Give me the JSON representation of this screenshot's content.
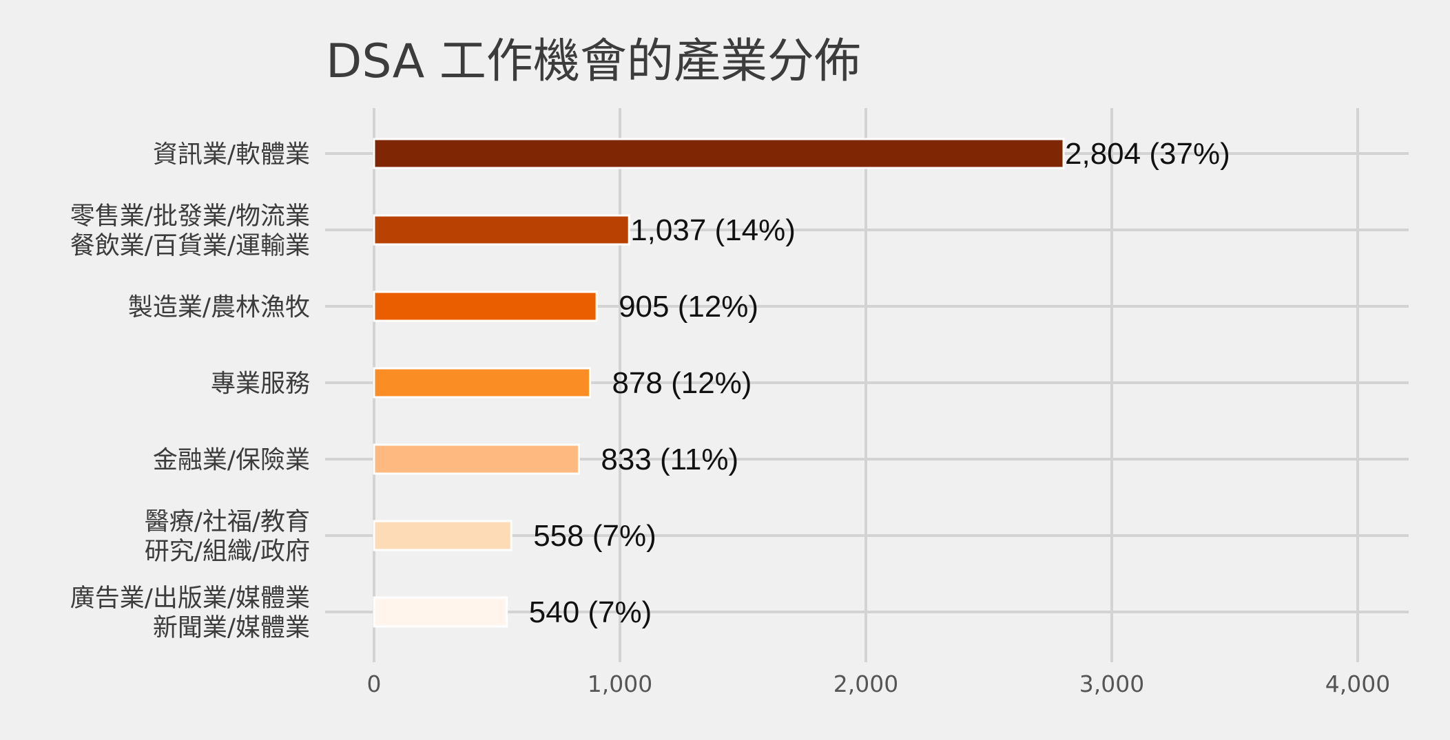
{
  "chart_data": {
    "type": "bar",
    "orientation": "horizontal",
    "title": "DSA 工作機會的產業分佈",
    "xlabel": "",
    "ylabel": "",
    "xlim": [
      0,
      4200
    ],
    "x_ticks": [
      0,
      1000,
      2000,
      3000,
      4000
    ],
    "x_tick_labels": [
      "0",
      "1,000",
      "2,000",
      "3,000",
      "4,000"
    ],
    "grid": true,
    "categories": [
      [
        "資訊業/軟體業"
      ],
      [
        "零售業/批發業/物流業",
        "餐飲業/百貨業/運輸業"
      ],
      [
        "製造業/農林漁牧"
      ],
      [
        "專業服務"
      ],
      [
        "金融業/保險業"
      ],
      [
        "醫療/社福/教育",
        "研究/組織/政府"
      ],
      [
        "廣告業/出版業/媒體業",
        "新聞業/媒體業"
      ]
    ],
    "values": [
      2804,
      1037,
      905,
      878,
      833,
      558,
      540
    ],
    "value_labels": [
      "2,804 (37%)",
      "1,037 (14%)",
      "905 (12%)",
      "878 (12%)",
      "833 (11%)",
      "558 (7%)",
      "540 (7%)"
    ],
    "colors": [
      "#7f2704",
      "#b94102",
      "#ea5e00",
      "#fa8d23",
      "#fdb97f",
      "#fddbb7",
      "#fff5ec"
    ]
  }
}
